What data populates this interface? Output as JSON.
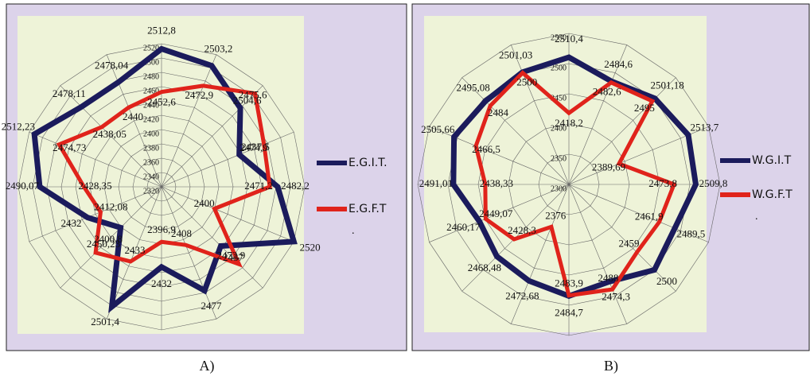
{
  "chart_data": [
    {
      "type": "radar",
      "caption": "A)",
      "rlim": [
        2320,
        2520
      ],
      "rticks": [
        2320,
        2340,
        2360,
        2380,
        2400,
        2420,
        2440,
        2460,
        2480,
        2500,
        2520
      ],
      "series": [
        {
          "name": "E.G.I.T.",
          "color": "#1b1b5c",
          "values": [
            2512.8,
            2503.2,
            2475.6,
            2437.5,
            2482.2,
            2520,
            2437,
            2477,
            2432,
            2501.4,
            2400.8,
            2432,
            2490.07,
            2512.23,
            2478.11,
            2478.04
          ],
          "value_labels": [
            "2512,8",
            "2503,2",
            "2475,6",
            "2437,5",
            "2482,2",
            "2520",
            "2437",
            "2477",
            "2432",
            "2501,4",
            "2400,8",
            "2432",
            "2490,07",
            "2512,23",
            "2478,11",
            "2478,04"
          ]
        },
        {
          "name": "E.G.F.T",
          "color": "#e0231b",
          "values": [
            2452.6,
            2472.9,
            2504.6,
            2474.9,
            2471.2,
            2400,
            2472.9,
            2408,
            2396.9,
            2433,
            2450.23,
            2412.08,
            2428.35,
            2474.73,
            2438.05,
            2440
          ],
          "value_labels": [
            "2452,6",
            "2472,9",
            "2504,6",
            "2474,9",
            "2471,2",
            "2400",
            "2472,9",
            "2408",
            "2396,9",
            "2433",
            "2450,23",
            "2412,08",
            "2428,35",
            "2474,73",
            "2438,05",
            "2440"
          ]
        }
      ],
      "legend_note": "."
    },
    {
      "type": "radar",
      "caption": "B)",
      "rlim": [
        2300,
        2550
      ],
      "rticks": [
        2300,
        2350,
        2400,
        2450,
        2500,
        2550
      ],
      "series": [
        {
          "name": "W.G.I.T",
          "color": "#1b1b5c",
          "values": [
            2510.4,
            2484.6,
            2501.18,
            2513.7,
            2509.8,
            2489.5,
            2500,
            2474.3,
            2484.7,
            2472.68,
            2468.48,
            2460.17,
            2491.01,
            2505.66,
            2495.08,
            2501.03
          ],
          "value_labels": [
            "2510,4",
            "2484,6",
            "2501,18",
            "2513,7",
            "2509,8",
            "2489,5",
            "2500",
            "2474,3",
            "2484,7",
            "2472,68",
            "2468,48",
            "2460,17",
            "2491,01",
            "2505,66",
            "2495,08",
            "2501,03"
          ]
        },
        {
          "name": "W.G.F.T",
          "color": "#e0231b",
          "values": [
            2418.2,
            2482.6,
            2495,
            2389.69,
            2473.8,
            2461.9,
            2459,
            2488,
            2483.9,
            2376,
            2428.3,
            2449.07,
            2438.33,
            2466.5,
            2484,
            2500
          ],
          "value_labels": [
            "2418,2",
            "2482,6",
            "2495",
            "2389,69",
            "2473,8",
            "2461,9",
            "2459",
            "2488",
            "2483,9",
            "2376",
            "2428,3",
            "2449,07",
            "2438,33",
            "2466,5",
            "2484",
            "2500"
          ]
        }
      ],
      "legend_note": "."
    }
  ]
}
